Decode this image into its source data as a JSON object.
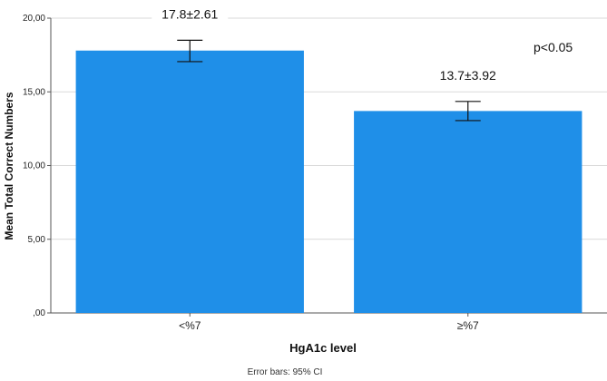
{
  "chart_data": {
    "type": "bar",
    "categories": [
      "<%7",
      "≥%7"
    ],
    "values": [
      17.8,
      13.7
    ],
    "error_bars": {
      "label": "Error bars: 95% CI",
      "lower": [
        17.05,
        13.05
      ],
      "upper": [
        18.5,
        14.35
      ]
    },
    "bar_labels": [
      "17.8±2.61",
      "13.7±3.92"
    ],
    "annotation": "p<0.05",
    "ylabel": "Mean Total Correct Numbers",
    "xlabel": "HgA1c level",
    "ylim": [
      0,
      20
    ],
    "yticks": [
      {
        "value": 0,
        "label": ",00"
      },
      {
        "value": 5,
        "label": "5,00"
      },
      {
        "value": 10,
        "label": "10,00"
      },
      {
        "value": 15,
        "label": "15,00"
      },
      {
        "value": 20,
        "label": "20,00"
      }
    ],
    "grid": true,
    "bar_color": "#1f8fe8"
  }
}
